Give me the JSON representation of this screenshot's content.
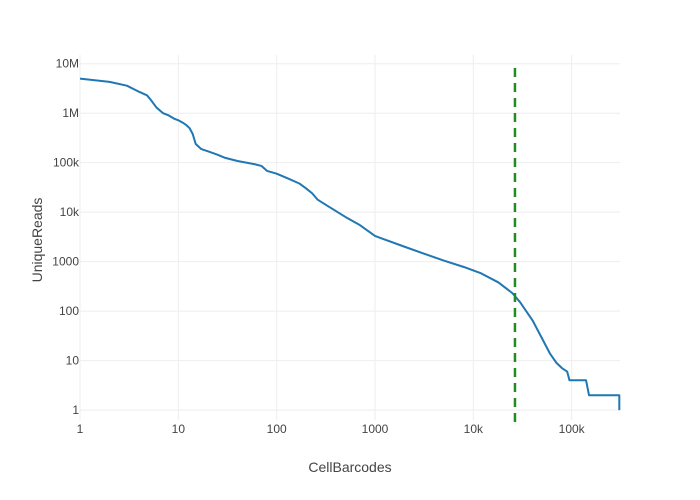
{
  "chart_data": {
    "type": "line",
    "xlabel": "CellBarcodes",
    "ylabel": "UniqueReads",
    "x_scale": "log",
    "y_scale": "log",
    "xlim": [
      1,
      310000
    ],
    "ylim": [
      0.5,
      15000000
    ],
    "grid": true,
    "legend": "none",
    "x_ticks": [
      {
        "value": 1,
        "label": "1"
      },
      {
        "value": 10,
        "label": "10"
      },
      {
        "value": 100,
        "label": "100"
      },
      {
        "value": 1000,
        "label": "1000"
      },
      {
        "value": 10000,
        "label": "10k"
      },
      {
        "value": 100000,
        "label": "100k"
      }
    ],
    "y_ticks": [
      {
        "value": 1,
        "label": "1"
      },
      {
        "value": 10,
        "label": "10"
      },
      {
        "value": 100,
        "label": "100"
      },
      {
        "value": 1000,
        "label": "1000"
      },
      {
        "value": 10000,
        "label": "10k"
      },
      {
        "value": 100000,
        "label": "100k"
      },
      {
        "value": 1000000,
        "label": "1M"
      },
      {
        "value": 10000000,
        "label": "10M"
      }
    ],
    "series": [
      {
        "color": "#1f77b4",
        "points": [
          [
            1,
            5000000
          ],
          [
            2,
            4300000
          ],
          [
            3,
            3600000
          ],
          [
            4,
            2700000
          ],
          [
            4.8,
            2300000
          ],
          [
            5.2,
            1900000
          ],
          [
            6,
            1300000
          ],
          [
            7,
            1000000
          ],
          [
            8,
            900000
          ],
          [
            9,
            780000
          ],
          [
            10,
            720000
          ],
          [
            11,
            650000
          ],
          [
            12,
            580000
          ],
          [
            13,
            500000
          ],
          [
            14,
            380000
          ],
          [
            15,
            240000
          ],
          [
            17,
            190000
          ],
          [
            20,
            170000
          ],
          [
            25,
            145000
          ],
          [
            30,
            125000
          ],
          [
            40,
            108000
          ],
          [
            60,
            93000
          ],
          [
            70,
            86000
          ],
          [
            80,
            68000
          ],
          [
            100,
            60000
          ],
          [
            130,
            48000
          ],
          [
            170,
            38000
          ],
          [
            200,
            30000
          ],
          [
            230,
            24000
          ],
          [
            260,
            18000
          ],
          [
            300,
            15000
          ],
          [
            500,
            8000
          ],
          [
            700,
            5500
          ],
          [
            1000,
            3300
          ],
          [
            2000,
            2000
          ],
          [
            3000,
            1500
          ],
          [
            5000,
            1050
          ],
          [
            8000,
            780
          ],
          [
            12000,
            580
          ],
          [
            18000,
            380
          ],
          [
            25000,
            230
          ],
          [
            30000,
            150
          ],
          [
            40000,
            65
          ],
          [
            50000,
            28
          ],
          [
            60000,
            14
          ],
          [
            70000,
            9
          ],
          [
            80000,
            7
          ],
          [
            90000,
            6
          ],
          [
            95000,
            4
          ],
          [
            100000,
            4
          ],
          [
            140000,
            4
          ],
          [
            150000,
            2
          ],
          [
            200000,
            2
          ],
          [
            305000,
            2
          ],
          [
            305000,
            1
          ]
        ]
      }
    ],
    "threshold_line": {
      "x": 26500,
      "color": "#228b22",
      "style": "dashed"
    }
  }
}
